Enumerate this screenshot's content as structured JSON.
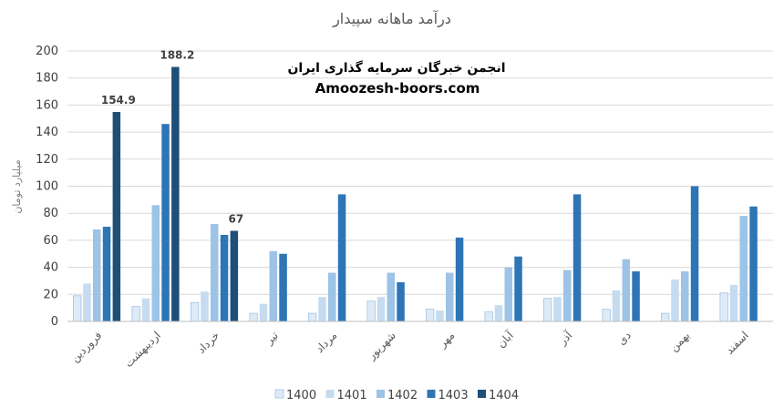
{
  "chart_data": {
    "type": "bar",
    "title": "درآمد ماهانه سپیدار",
    "ylabel": "میلیارد تومان",
    "xlabel": "",
    "ylim": [
      0,
      200
    ],
    "yticks": [
      0,
      20,
      40,
      60,
      80,
      100,
      120,
      140,
      160,
      180,
      200
    ],
    "grid": true,
    "legend_position": "bottom",
    "categories": [
      "فروردین",
      "اردیبهشت",
      "خرداد",
      "تیر",
      "مرداد",
      "شهریور",
      "مهر",
      "آبان",
      "آذر",
      "دی",
      "بهمن",
      "اسفند"
    ],
    "series": [
      {
        "name": "1400",
        "color": "#deebf7",
        "values": [
          19,
          11,
          14,
          6,
          6,
          15,
          9,
          7,
          17,
          9,
          6,
          21
        ]
      },
      {
        "name": "1401",
        "color": "#c6dbef",
        "values": [
          28,
          17,
          22,
          13,
          18,
          18,
          8,
          12,
          18,
          23,
          31,
          27
        ]
      },
      {
        "name": "1402",
        "color": "#9dc3e6",
        "values": [
          68,
          86,
          72,
          52,
          36,
          36,
          36,
          40,
          38,
          46,
          37,
          78
        ]
      },
      {
        "name": "1403",
        "color": "#2e75b6",
        "values": [
          70,
          146,
          64,
          50,
          94,
          29,
          62,
          48,
          94,
          37,
          100,
          85
        ]
      },
      {
        "name": "1404",
        "color": "#1f4e79",
        "values": [
          154.9,
          188.2,
          67,
          null,
          null,
          null,
          null,
          null,
          null,
          null,
          null,
          null
        ]
      }
    ],
    "data_labels": [
      {
        "series": "1404",
        "category": "فروردین",
        "text": "154.9"
      },
      {
        "series": "1404",
        "category": "اردیبهشت",
        "text": "188.2"
      },
      {
        "series": "1404",
        "category": "خرداد",
        "text": "67"
      }
    ]
  },
  "watermark": {
    "line1": "انجمن خبرگان سرمایه گذاری ایران",
    "line2": "Amoozesh-boors.com"
  }
}
